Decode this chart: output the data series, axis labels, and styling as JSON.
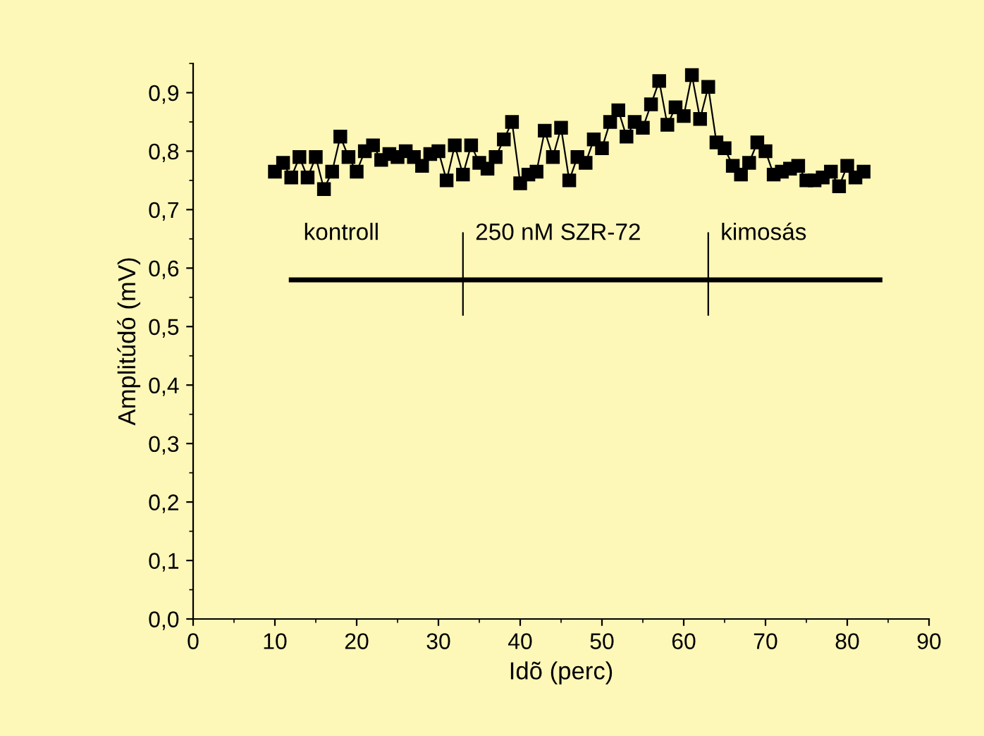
{
  "chart_data": {
    "type": "line",
    "xlabel": "Idõ (perc)",
    "ylabel": "Amplitúdó (mV)",
    "marker": "square",
    "line_style": "solid",
    "grid": false,
    "legend": false,
    "xlim": [
      0,
      90
    ],
    "xticks": [
      0,
      10,
      20,
      30,
      40,
      50,
      60,
      70,
      80,
      90
    ],
    "ylim": [
      0,
      0.95
    ],
    "yticks": [
      {
        "value": 0,
        "label": "0,0"
      },
      {
        "value": 0.1,
        "label": "0,1"
      },
      {
        "value": 0.2,
        "label": "0,2"
      },
      {
        "value": 0.3,
        "label": "0,3"
      },
      {
        "value": 0.4,
        "label": "0,4"
      },
      {
        "value": 0.5,
        "label": "0,5"
      },
      {
        "value": 0.6,
        "label": "0,6"
      },
      {
        "value": 0.7,
        "label": "0,7"
      },
      {
        "value": 0.8,
        "label": "0,8"
      },
      {
        "value": 0.9,
        "label": "0,9"
      }
    ],
    "series": [
      {
        "color": "#000000",
        "x": [
          10,
          11,
          12,
          13,
          14,
          15,
          16,
          17,
          18,
          19,
          20,
          21,
          22,
          23,
          24,
          25,
          26,
          27,
          28,
          29,
          30,
          31,
          32,
          33,
          34,
          35,
          36,
          37,
          38,
          39,
          40,
          41,
          42,
          43,
          44,
          45,
          46,
          47,
          48,
          49,
          50,
          51,
          52,
          53,
          54,
          55,
          56,
          57,
          58,
          59,
          60,
          61,
          62,
          63,
          64,
          65,
          66,
          67,
          68,
          69,
          70,
          71,
          72,
          73,
          74,
          75,
          76,
          77,
          78,
          79,
          80,
          81,
          82
        ],
        "values": [
          0.765,
          0.78,
          0.755,
          0.79,
          0.755,
          0.79,
          0.735,
          0.765,
          0.825,
          0.79,
          0.765,
          0.8,
          0.81,
          0.785,
          0.795,
          0.79,
          0.8,
          0.79,
          0.775,
          0.795,
          0.8,
          0.75,
          0.81,
          0.76,
          0.81,
          0.78,
          0.77,
          0.79,
          0.82,
          0.85,
          0.745,
          0.76,
          0.765,
          0.835,
          0.79,
          0.84,
          0.75,
          0.79,
          0.78,
          0.82,
          0.805,
          0.85,
          0.87,
          0.825,
          0.85,
          0.84,
          0.88,
          0.92,
          0.845,
          0.875,
          0.86,
          0.93,
          0.855,
          0.91,
          0.815,
          0.805,
          0.775,
          0.76,
          0.78,
          0.815,
          0.8,
          0.76,
          0.765,
          0.77,
          0.775,
          0.75,
          0.75,
          0.755,
          0.765,
          0.74,
          0.775,
          0.755,
          0.765
        ]
      },
      {
        "color": "#000000",
        "type": "line",
        "marker": "none",
        "x": [
          12,
          84
        ],
        "values": [
          0.58,
          0.58
        ]
      },
      {
        "color": "#000000",
        "type": "line",
        "marker": "none",
        "x": [
          33,
          33
        ],
        "values": [
          0.52,
          0.66
        ]
      },
      {
        "color": "#000000",
        "type": "line",
        "marker": "none",
        "x": [
          63,
          63
        ],
        "values": [
          0.52,
          0.66
        ]
      }
    ],
    "annotations": [
      "kontroll",
      "250 nM SZR-72",
      "kimosás"
    ]
  }
}
